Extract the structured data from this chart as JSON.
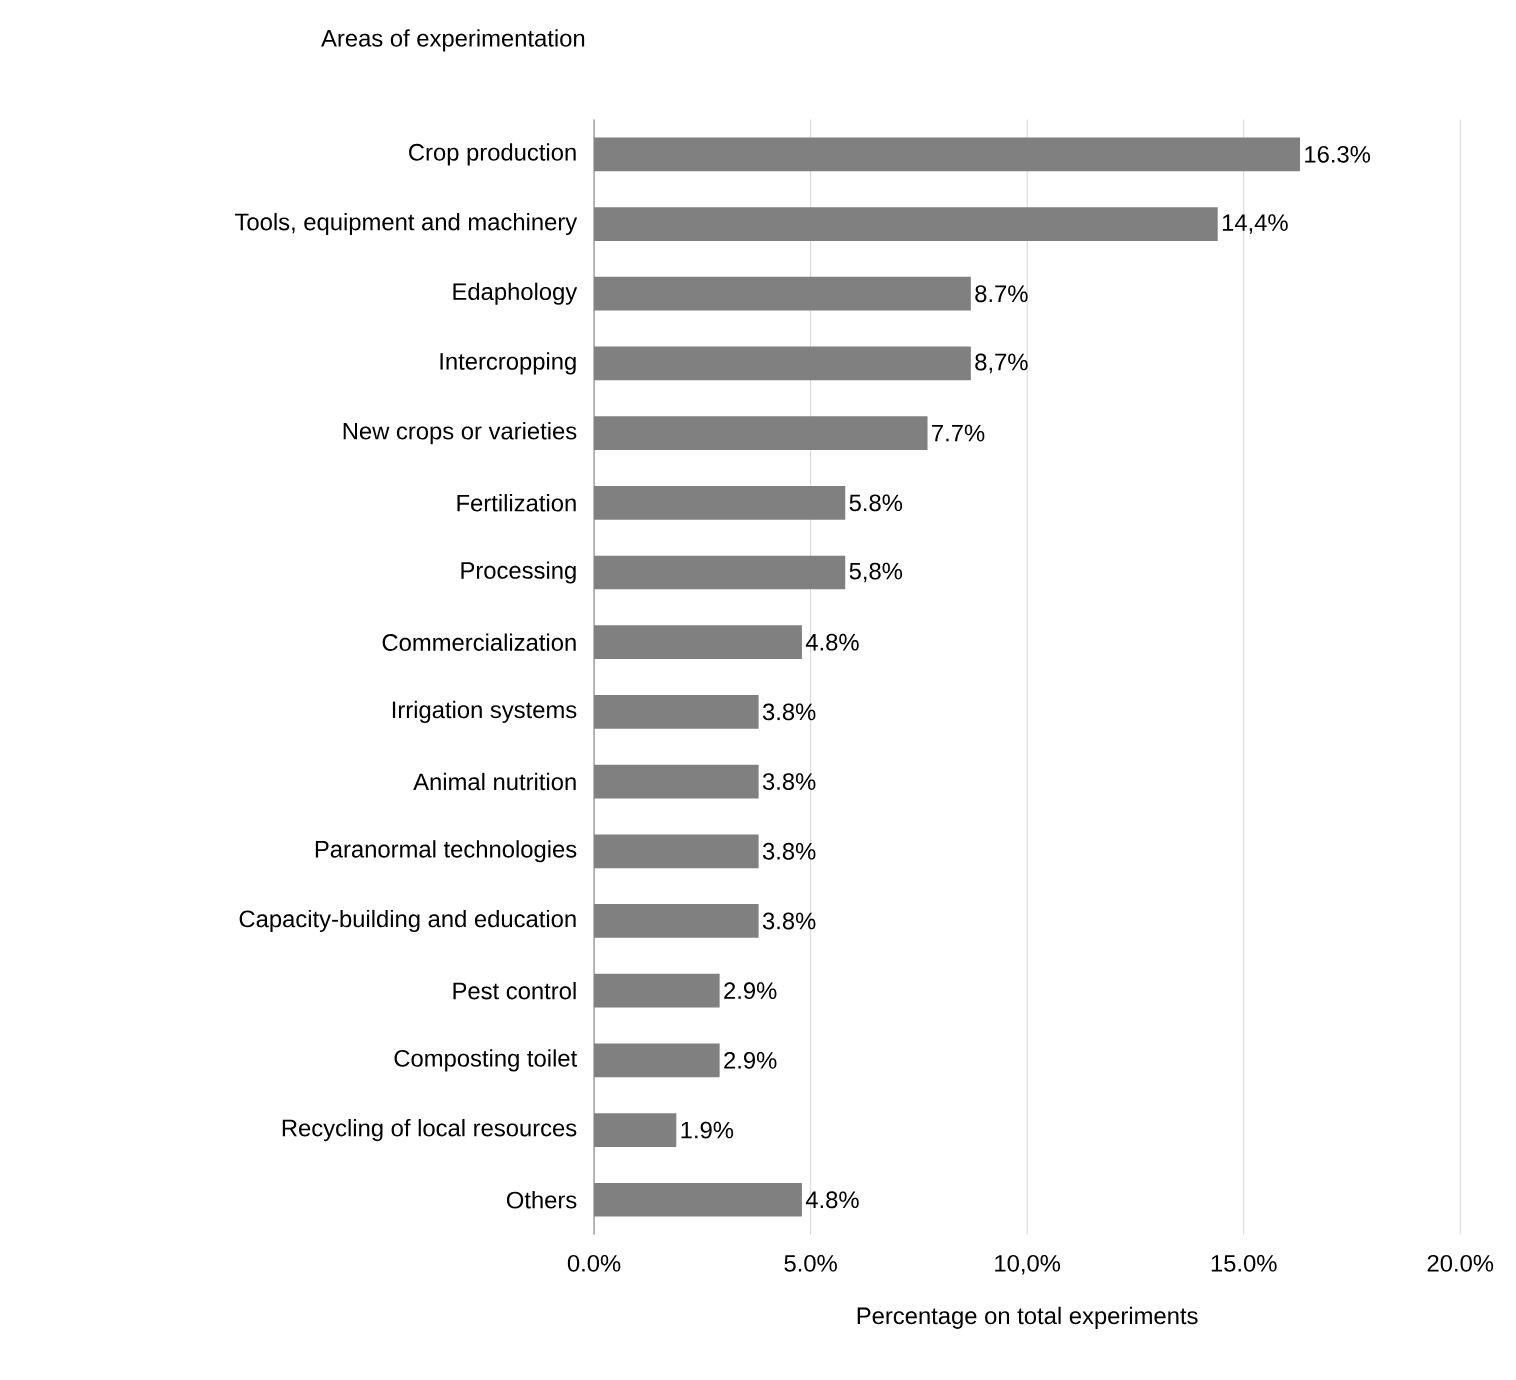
{
  "chart_data": {
    "type": "bar",
    "orientation": "horizontal",
    "ylabel": "Areas of experimentation",
    "xlabel": "Percentage on total experiments",
    "categories": [
      "Crop production",
      "Tools, equipment and machinery",
      "Edaphology",
      "Intercropping",
      "New crops or varieties",
      "Fertilization",
      "Processing",
      "Commercialization",
      "Irrigation systems",
      "Animal nutrition",
      "Paranormal technologies",
      "Capacity-building and education",
      "Pest control",
      "Composting toilet",
      "Recycling of local resources",
      "Others"
    ],
    "values": [
      16.3,
      14.4,
      8.7,
      8.7,
      7.7,
      5.8,
      5.8,
      4.8,
      3.8,
      3.8,
      3.8,
      3.8,
      2.9,
      2.9,
      1.9,
      4.8
    ],
    "value_labels": [
      "16.3%",
      "14,4%",
      "8.7%",
      "8,7%",
      "7.7%",
      "5.8%",
      "5,8%",
      "4.8%",
      "3.8%",
      "3.8%",
      "3.8%",
      "3.8%",
      "2.9%",
      "2.9%",
      "1.9%",
      "4.8%"
    ],
    "color": "#808080",
    "xlim": [
      0,
      20
    ],
    "xticks": [
      {
        "value": 0,
        "label": "0.0%"
      },
      {
        "value": 5,
        "label": "5.0%"
      },
      {
        "value": 10,
        "label": "10,0%"
      },
      {
        "value": 15,
        "label": "15.0%"
      },
      {
        "value": 20,
        "label": "20.0%"
      }
    ],
    "grid": "x"
  }
}
